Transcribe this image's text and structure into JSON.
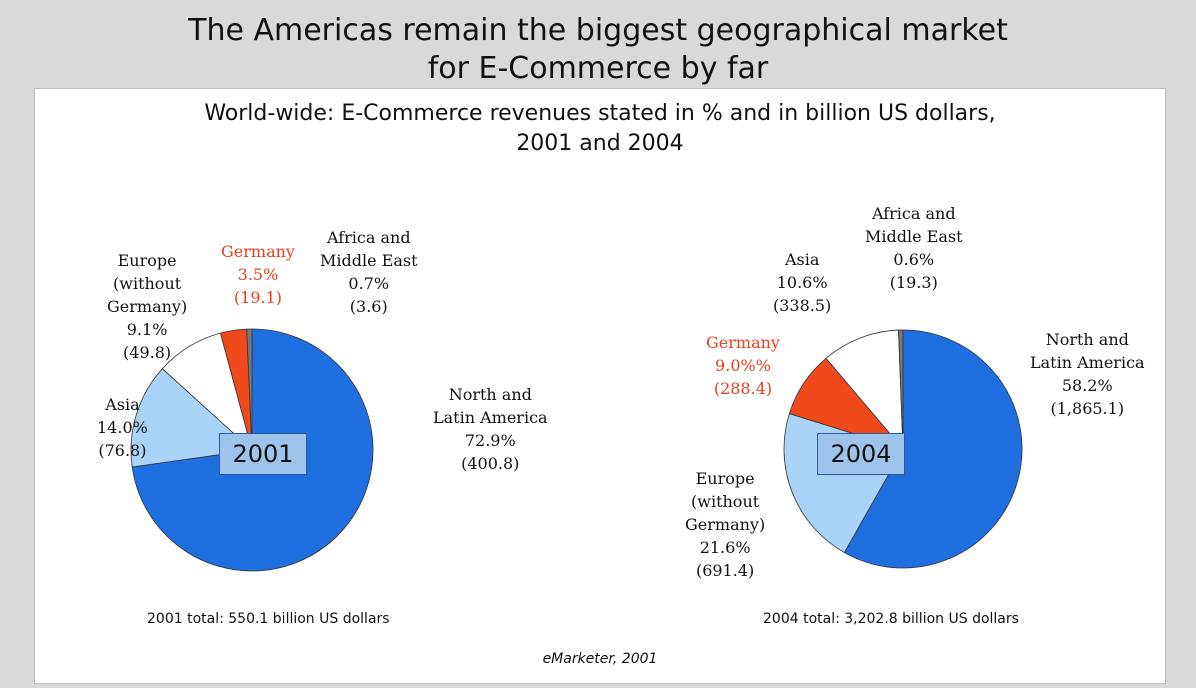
{
  "headline": [
    "The Americas remain the biggest geographical market",
    "for E-Commerce by far"
  ],
  "subtitle": [
    "World-wide: E-Commerce revenues stated in % and in billion US dollars,",
    "2001 and 2004"
  ],
  "source": "eMarketer, 2001",
  "colors": {
    "north_latin_america": "#1f6fe0",
    "europe_without_germany": "#a9d3f7",
    "germany": "#f04a1c",
    "asia": "#ffffff",
    "africa_middle_east": "#777777",
    "year_box": "#9ec4ec"
  },
  "chart_data": [
    {
      "type": "pie",
      "year_label": "2001",
      "total_label": "2001 total: 550.1 billion US dollars",
      "slices": [
        {
          "key": "north_latin_america",
          "percent": 72.9,
          "value": 400.8,
          "label_lines": [
            "North and",
            "Latin America",
            "72.9%",
            "(400.8)"
          ]
        },
        {
          "key": "europe_without_germany",
          "percent": 14.0,
          "value": 76.8,
          "label_lines": [
            "Asia",
            "14.0%",
            "(76.8)"
          ]
        },
        {
          "key": "asia",
          "percent": 9.1,
          "value": 49.8,
          "label_lines": [
            "Europe",
            "(without",
            "Germany)",
            "9.1%",
            "(49.8)"
          ]
        },
        {
          "key": "germany",
          "percent": 3.5,
          "value": 19.1,
          "label_lines": [
            "Germany",
            "3.5%",
            "(19.1)"
          ]
        },
        {
          "key": "africa_middle_east",
          "percent": 0.7,
          "value": 3.6,
          "label_lines": [
            "Africa and",
            "Middle East",
            "0.7%",
            "(3.6)"
          ]
        }
      ]
    },
    {
      "type": "pie",
      "year_label": "2004",
      "total_label": "2004 total: 3,202.8 billion US dollars",
      "slices": [
        {
          "key": "north_latin_america",
          "percent": 58.2,
          "value": 1865.1,
          "label_lines": [
            "North and",
            "Latin America",
            "58.2%",
            "(1,865.1)"
          ]
        },
        {
          "key": "europe_without_germany",
          "percent": 21.6,
          "value": 691.4,
          "label_lines": [
            "Europe",
            "(without",
            "Germany)",
            "21.6%",
            "(691.4)"
          ]
        },
        {
          "key": "germany",
          "percent": 9.0,
          "value": 288.4,
          "label_lines": [
            "Germany",
            "9.0%%",
            "(288.4)"
          ]
        },
        {
          "key": "asia",
          "percent": 10.6,
          "value": 338.5,
          "label_lines": [
            "Asia",
            "10.6%",
            "(338.5)"
          ]
        },
        {
          "key": "africa_middle_east",
          "percent": 0.6,
          "value": 19.3,
          "label_lines": [
            "Africa and",
            "Middle East",
            "0.6%",
            "(19.3)"
          ]
        }
      ]
    }
  ]
}
